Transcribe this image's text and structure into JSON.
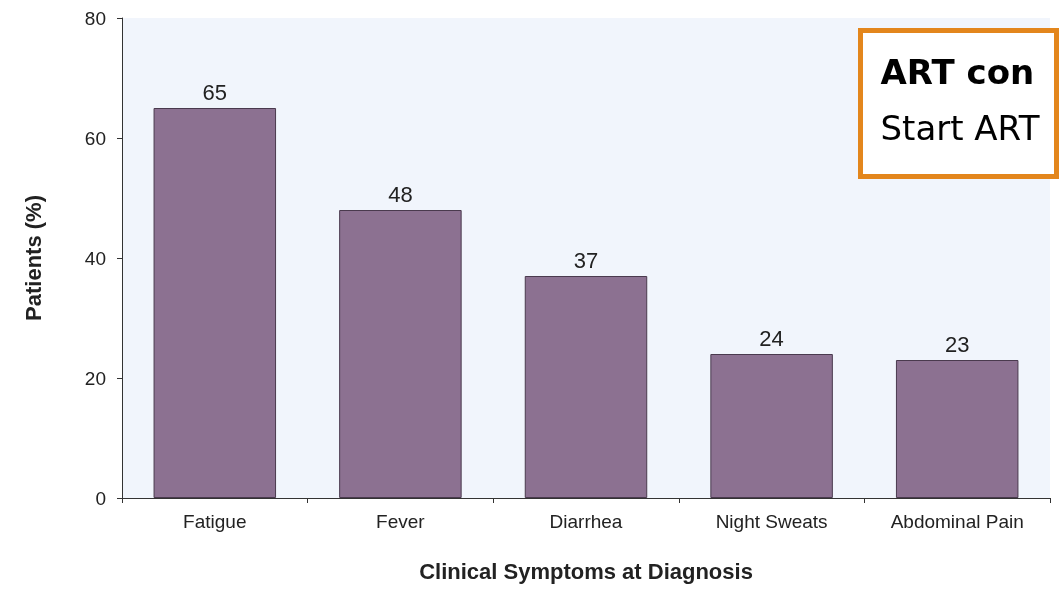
{
  "chart_data": {
    "type": "bar",
    "xlabel": "Clinical Symptoms at Diagnosis",
    "ylabel": "Patients (%)",
    "categories": [
      "Fatigue",
      "Fever",
      "Diarrhea",
      "Night Sweats",
      "Abdominal Pain"
    ],
    "values": [
      65,
      48,
      37,
      24,
      23
    ],
    "color": "#8c7191",
    "ylim": [
      0,
      80
    ],
    "yticks": [
      0,
      20,
      40,
      60,
      80
    ],
    "grid": false,
    "data_labels": true,
    "annotations": [
      "ART con",
      "Start ART"
    ]
  }
}
